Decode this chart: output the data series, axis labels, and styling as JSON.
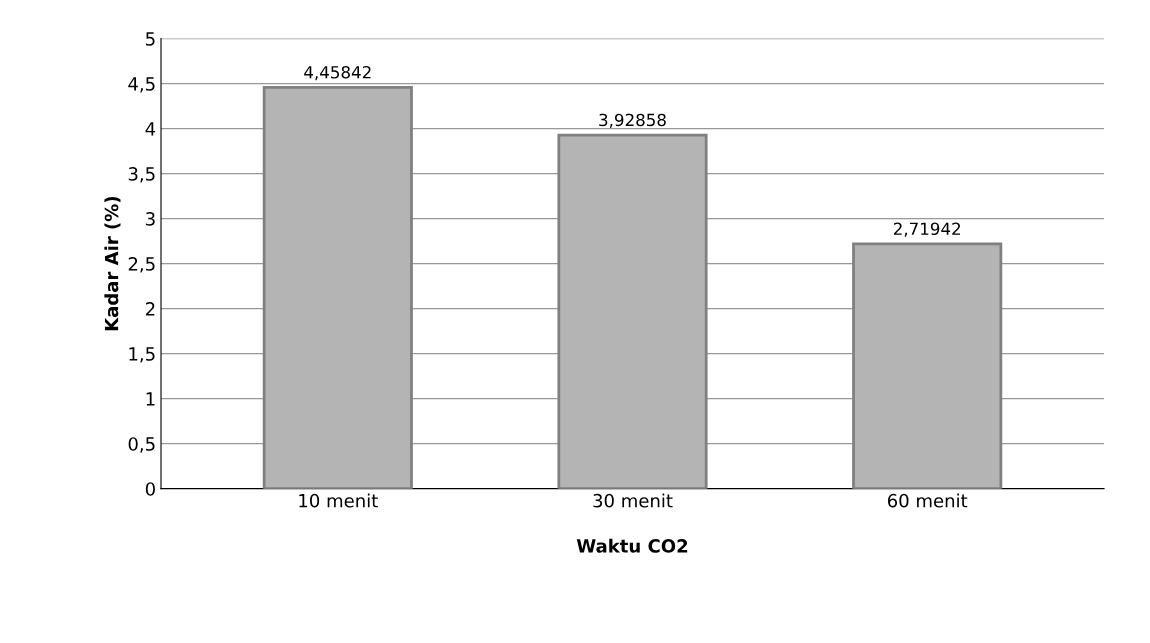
{
  "chart_data": {
    "type": "bar",
    "xlabel": "Waktu CO2",
    "ylabel": "Kadar Air (%)",
    "categories": [
      "10 menit",
      "30 menit",
      "60 menit"
    ],
    "values": [
      4.45842,
      3.92858,
      2.71942
    ],
    "value_labels": [
      "4,45842",
      "3,92858",
      "2,71942"
    ],
    "color": "#b4b4b4",
    "ylim": [
      0,
      5
    ],
    "yticks": [
      0,
      {
        "value": 0.5,
        "label": "0,5"
      },
      1,
      {
        "value": 1.5,
        "label": "1,5"
      },
      2,
      {
        "value": 2.5,
        "label": "2,5"
      },
      3,
      {
        "value": 3.5,
        "label": "3,5"
      },
      4,
      {
        "value": 4.5,
        "label": "4,5"
      },
      5
    ],
    "grid": "y"
  }
}
